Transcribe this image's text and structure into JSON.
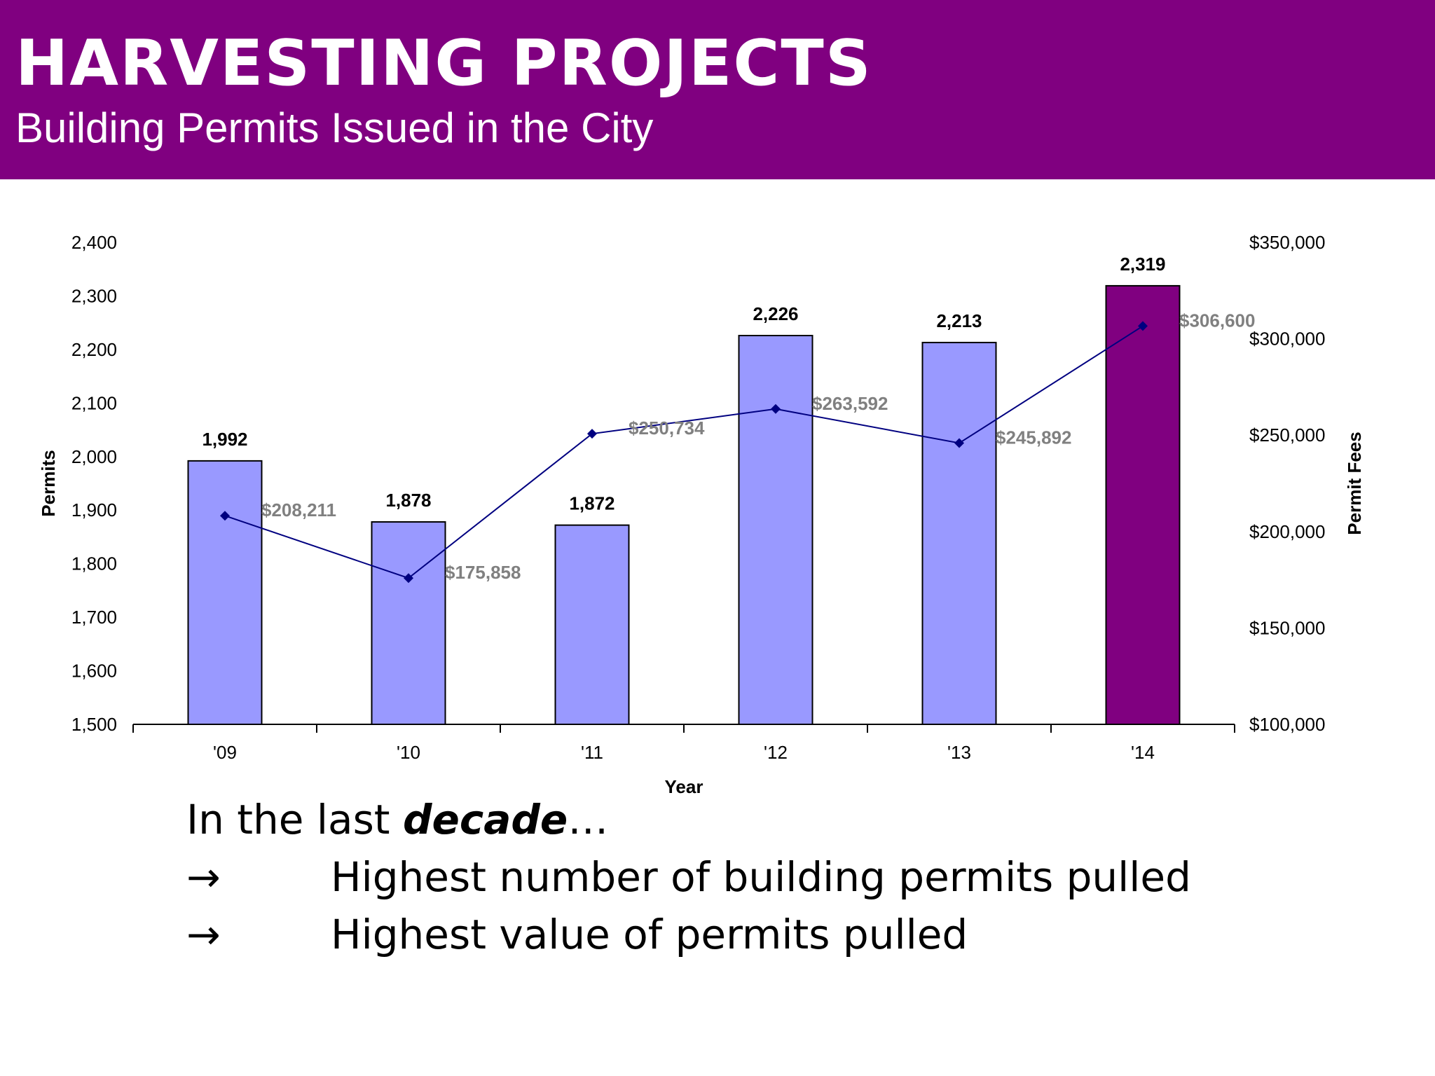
{
  "header": {
    "title": "HARVESTING PROJECTS",
    "subtitle": "Building Permits Issued in the City"
  },
  "colors": {
    "header_bg": "#800080",
    "bar_default": "#9999FF",
    "bar_highlight": "#800080",
    "line": "#000080",
    "fee_label": "#808080"
  },
  "chart_data": {
    "type": "bar",
    "categories": [
      "'09",
      "'10",
      "'11",
      "'12",
      "'13",
      "'14"
    ],
    "xlabel": "Year",
    "ylabel": "Permits",
    "y2label": "Permit Fees",
    "ylim": [
      1500,
      2400
    ],
    "y_ticks": [
      "1,500",
      "1,600",
      "1,700",
      "1,800",
      "1,900",
      "2,000",
      "2,100",
      "2,200",
      "2,300",
      "2,400"
    ],
    "y2lim": [
      100000,
      350000
    ],
    "y2_ticks": [
      "$100,000",
      "$150,000",
      "$200,000",
      "$250,000",
      "$300,000",
      "$350,000"
    ],
    "grid": false,
    "series": [
      {
        "kind": "bar",
        "axis": "left",
        "values": [
          1992,
          1878,
          1872,
          2226,
          2213,
          2319
        ],
        "labels": [
          "1,992",
          "1,878",
          "1,872",
          "2,226",
          "2,213",
          "2,319"
        ],
        "highlight_index": 5
      },
      {
        "kind": "line",
        "axis": "right",
        "values": [
          208211,
          175858,
          250734,
          263592,
          245892,
          306600
        ],
        "labels": [
          "$208,211",
          "$175,858",
          "$250,734",
          "$263,592",
          "$245,892",
          "$306,600"
        ]
      }
    ]
  },
  "notes": {
    "intro_prefix": "In the last ",
    "intro_emphasis": "decade",
    "intro_suffix": "…",
    "bullets": [
      {
        "arrow": "→",
        "text": "Highest number of building permits pulled"
      },
      {
        "arrow": "→",
        "text": "Highest value of permits pulled"
      }
    ]
  }
}
